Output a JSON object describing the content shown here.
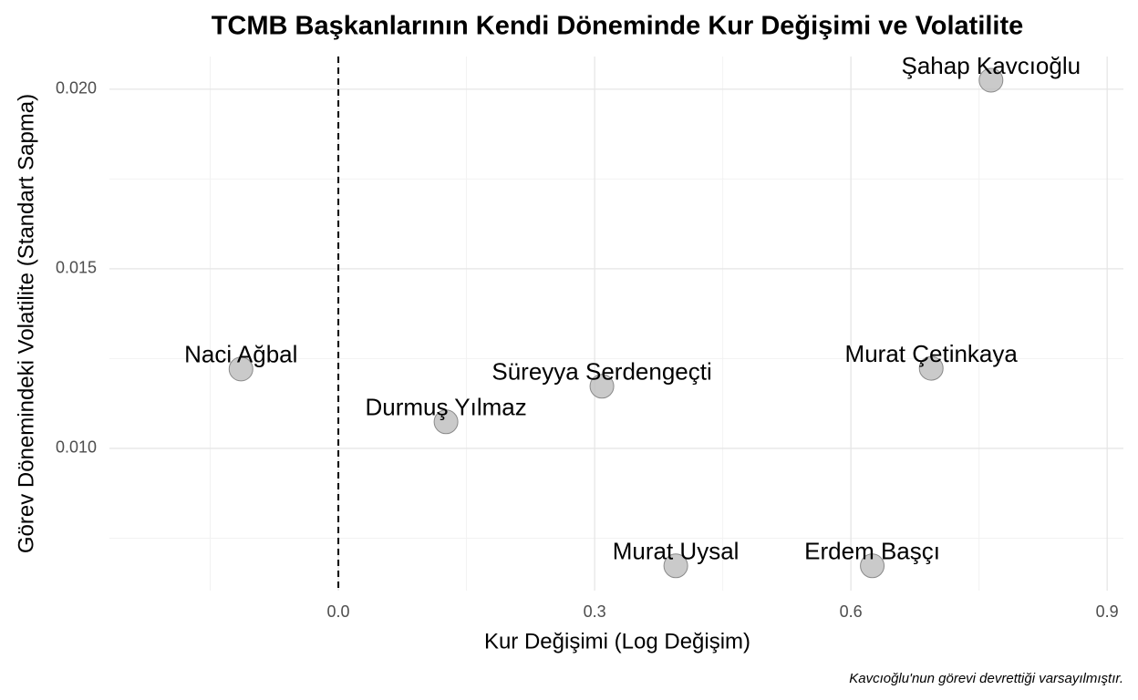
{
  "chart_data": {
    "type": "scatter",
    "title": "TCMB Başkanlarının Kendi Döneminde Kur Değişimi ve Volatilite",
    "x_label": "Kur Değişimi (Log Değişim)",
    "y_label": "Görev Dönemindeki Volatilite (Standart Sapma)",
    "caption": "Kavcıoğlu'nun görevi devrettiği varsayılmıştır.",
    "labels": [
      "Naci Ağbal",
      "Durmuş Yılmaz",
      "Süreyya Serdengeçti",
      "Murat Uysal",
      "Erdem Başçı",
      "Murat Çetinkaya",
      "Şahap Kavcıoğlu"
    ],
    "x": [
      -0.114,
      0.126,
      0.3085,
      0.395,
      0.625,
      0.694,
      0.764
    ],
    "values": [
      0.01221,
      0.01074,
      0.01173,
      0.00673,
      0.00673,
      0.01223,
      0.02025
    ],
    "color": "#bdbdbd",
    "xlim": [
      -0.268,
      0.919
    ],
    "ylim": [
      0.00604,
      0.02091
    ],
    "xticks": [
      {
        "value": 0,
        "label": "0.0"
      },
      0.3,
      0.6,
      0.9
    ],
    "yticks": [
      {
        "value": 0.01,
        "label": "0.010"
      },
      {
        "value": 0.015,
        "label": "0.015"
      },
      {
        "value": 0.02,
        "label": "0.020"
      }
    ],
    "minor_xticks": [
      -0.15,
      0.15,
      0.45,
      0.75
    ],
    "minor_yticks": [
      0.0075,
      0.0125,
      0.0175
    ],
    "vline": 0,
    "grid": true
  }
}
